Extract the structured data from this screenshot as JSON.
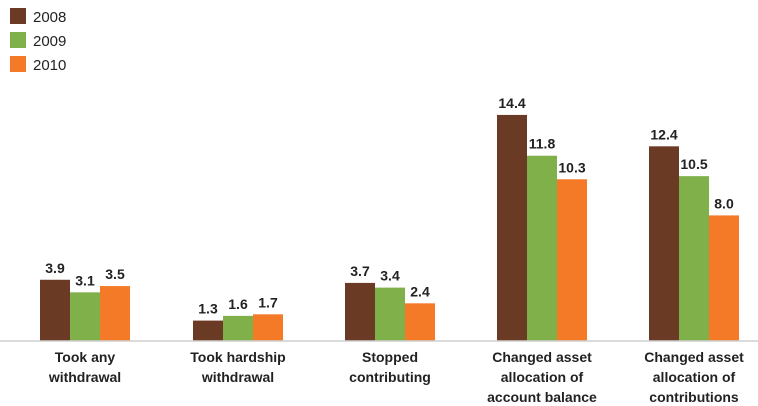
{
  "chart_data": {
    "type": "bar",
    "title": "",
    "xlabel": "",
    "ylabel": "",
    "ylim": [
      0,
      15
    ],
    "grid": false,
    "legend": "top-left",
    "categories": [
      [
        "Took any",
        "withdrawal"
      ],
      [
        "Took hardship",
        "withdrawal"
      ],
      [
        "Stopped",
        "contributing"
      ],
      [
        "Changed asset",
        "allocation of",
        "account balance"
      ],
      [
        "Changed asset",
        "allocation of",
        "contributions"
      ]
    ],
    "series": [
      {
        "name": "2008",
        "color": "#6b3a24",
        "values": [
          3.9,
          1.3,
          3.7,
          14.4,
          12.4
        ],
        "labels": [
          "3.9",
          "1.3",
          "3.7",
          "14.4",
          "12.4"
        ]
      },
      {
        "name": "2009",
        "color": "#7fb04a",
        "values": [
          3.1,
          1.6,
          3.4,
          11.8,
          10.5
        ],
        "labels": [
          "3.1",
          "1.6",
          "3.4",
          "11.8",
          "10.5"
        ]
      },
      {
        "name": "2010",
        "color": "#f47a28",
        "values": [
          3.5,
          1.7,
          2.4,
          10.3,
          8.0
        ],
        "labels": [
          "3.5",
          "1.7",
          "2.4",
          "10.3",
          "8.0"
        ]
      }
    ]
  }
}
